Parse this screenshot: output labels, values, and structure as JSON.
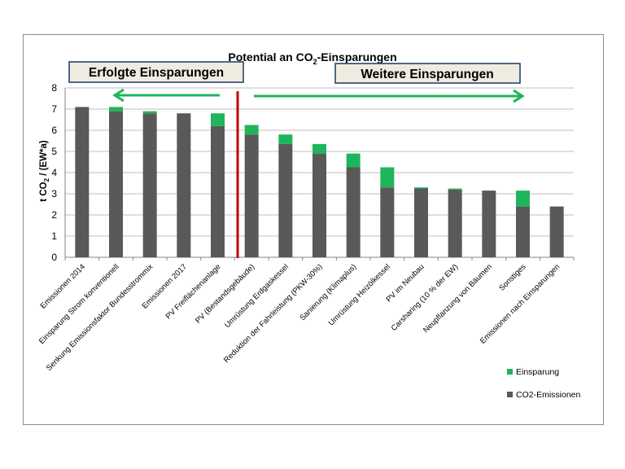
{
  "chart_data": {
    "type": "bar",
    "stacked": true,
    "title_main": "Potential an CO",
    "title_sub": "2",
    "title_end": "-Einsparungen",
    "ylabel_main": "t CO",
    "ylabel_sub": "2",
    "ylabel_end": " / (EW*a)",
    "ylim": [
      0,
      8
    ],
    "yticks": [
      "0",
      "1",
      "2",
      "3",
      "4",
      "5",
      "6",
      "7",
      "8"
    ],
    "grid": true,
    "legend_position": "bottom-right",
    "categories": [
      "Emissionen 2014",
      "Einsparung Strom konventionell",
      "Senkung Emissionsfaktor Bundesstrommix",
      "Emissionen 2017",
      "PV Freiflächenanlage",
      "PV (Bestandsgebäude)",
      "Umrüstung Erdgaskessel",
      "Reduktion der Fahrleistung (PKW-30%)",
      "Sanierung (Klimaplus)",
      "Umrüstung Heizölkessel",
      "PV im Neubau",
      "Carsharing (10 % der EW)",
      "Neupflanzung von Bäumen",
      "Sonstiges",
      "Emissionen nach Einsparungen"
    ],
    "series": [
      {
        "name": "CO2-Emissionen",
        "color": "#595959",
        "values": [
          7.1,
          6.9,
          6.8,
          6.8,
          6.2,
          5.8,
          5.35,
          4.9,
          4.25,
          3.3,
          3.25,
          3.2,
          3.15,
          2.4,
          2.4
        ]
      },
      {
        "name": "Einsparung",
        "color": "#1fb55a",
        "values": [
          0,
          0.2,
          0.1,
          0,
          0.6,
          0.45,
          0.45,
          0.45,
          0.65,
          0.95,
          0.05,
          0.05,
          0,
          0.75,
          0
        ]
      }
    ],
    "annotations": {
      "left_box": "Erfolgte Einsparungen",
      "right_box": "Weitere Einsparungen"
    },
    "divider_color": "#c00000",
    "arrow_color": "#1fb55a"
  }
}
